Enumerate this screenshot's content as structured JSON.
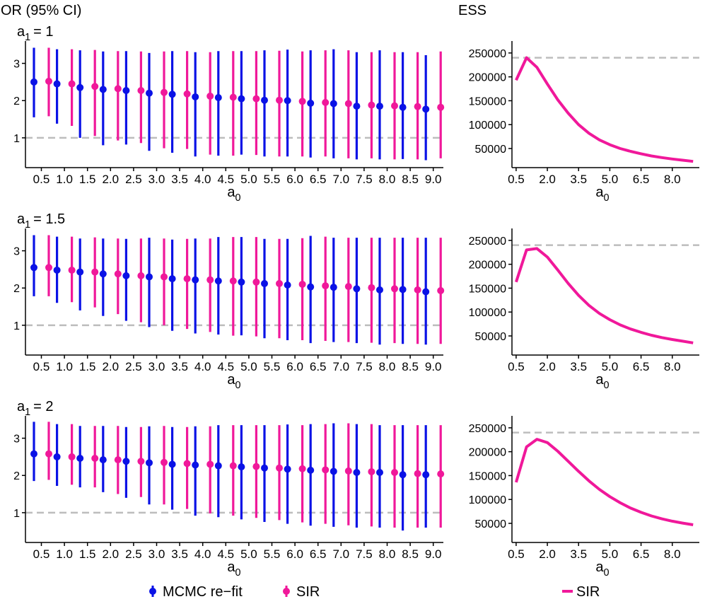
{
  "figure": {
    "left_title": "OR (95% CI)",
    "right_title": "ESS",
    "x_axis_label_base": "a",
    "x_axis_label_sub": "0",
    "panel_label_base": "a",
    "panel_label_sub": "1",
    "colors": {
      "mcmc": "#0a12e6",
      "sir": "#f0189a",
      "ref_line": "#bdbdbd"
    }
  },
  "legend": {
    "left_items": [
      {
        "label": "MCMC re−fit",
        "color": "#0a12e6"
      },
      {
        "label": "SIR",
        "color": "#f0189a"
      }
    ],
    "right_items": [
      {
        "label": "SIR",
        "color": "#f0189a"
      }
    ]
  },
  "chart_data": [
    {
      "type": "scatter",
      "panel_label_value": "= 1",
      "x_tick_labels": [
        "0.5",
        "1.0",
        "1.5",
        "2.0",
        "2.5",
        "3.0",
        "3.5",
        "4.0",
        "4.5",
        "5.0",
        "5.5",
        "6.0",
        "6.5",
        "7.0",
        "7.5",
        "8.0",
        "8.5",
        "9.0"
      ],
      "y_ticks": [
        "1",
        "2",
        "3"
      ],
      "ylim": [
        0.2,
        3.6
      ],
      "ref_line_y": 1,
      "series": [
        {
          "name": "MCMC re−fit",
          "y": [
            2.5,
            2.45,
            2.35,
            2.3,
            2.27,
            2.2,
            2.17,
            2.1,
            2.08,
            2.05,
            2.01,
            2.0,
            1.93,
            1.92,
            1.85,
            1.85,
            1.82,
            1.77
          ],
          "lower": [
            1.55,
            1.38,
            1.0,
            0.8,
            0.82,
            0.65,
            0.6,
            0.5,
            0.52,
            0.55,
            0.5,
            0.5,
            0.47,
            0.45,
            0.42,
            0.42,
            0.43,
            0.4
          ],
          "upper": [
            3.42,
            3.38,
            3.35,
            3.32,
            3.33,
            3.28,
            3.33,
            3.3,
            3.33,
            3.33,
            3.35,
            3.37,
            3.35,
            3.38,
            3.3,
            3.35,
            3.3,
            3.22
          ]
        },
        {
          "name": "SIR",
          "y": [
            2.52,
            2.45,
            2.38,
            2.32,
            2.27,
            2.22,
            2.18,
            2.12,
            2.09,
            2.05,
            2.01,
            1.98,
            1.95,
            1.92,
            1.88,
            1.86,
            1.84,
            1.82
          ],
          "lower": [
            1.58,
            1.32,
            1.05,
            0.93,
            0.86,
            0.72,
            0.7,
            0.55,
            0.52,
            0.54,
            0.5,
            0.5,
            0.5,
            0.45,
            0.45,
            0.42,
            0.42,
            0.45
          ],
          "upper": [
            3.42,
            3.38,
            3.36,
            3.33,
            3.32,
            3.32,
            3.33,
            3.3,
            3.33,
            3.33,
            3.34,
            3.32,
            3.35,
            3.35,
            3.3,
            3.3,
            3.3,
            3.32
          ]
        }
      ],
      "ess": {
        "type": "line",
        "name": "SIR",
        "x_tick_labels": [
          "0.5",
          "2.0",
          "3.5",
          "5.0",
          "6.5",
          "8.0"
        ],
        "x_tick_values": [
          0.5,
          2.0,
          3.5,
          5.0,
          6.5,
          8.0
        ],
        "xlim": [
          0.3,
          9.3
        ],
        "y_tick_labels": [
          "50000",
          "100000",
          "150000",
          "200000",
          "250000"
        ],
        "y_tick_values": [
          50000,
          100000,
          150000,
          200000,
          250000
        ],
        "ylim": [
          10000,
          275000
        ],
        "ref_line_y": 240000,
        "x": [
          0.5,
          1.0,
          1.5,
          2.0,
          2.5,
          3.0,
          3.5,
          4.0,
          4.5,
          5.0,
          5.5,
          6.0,
          6.5,
          7.0,
          7.5,
          8.0,
          8.5,
          9.0
        ],
        "y": [
          193000,
          240000,
          220000,
          185000,
          152000,
          124000,
          100000,
          82000,
          68000,
          58000,
          50000,
          44000,
          39000,
          34500,
          31000,
          28000,
          25500,
          23000
        ]
      }
    },
    {
      "type": "scatter",
      "panel_label_value": "= 1.5",
      "x_tick_labels": [
        "0.5",
        "1.0",
        "1.5",
        "2.0",
        "2.5",
        "3.0",
        "3.5",
        "4.0",
        "4.5",
        "5.0",
        "5.5",
        "6.0",
        "6.5",
        "7.0",
        "7.5",
        "8.0",
        "8.5",
        "9.0"
      ],
      "y_ticks": [
        "1",
        "2",
        "3"
      ],
      "ylim": [
        0.2,
        3.6
      ],
      "ref_line_y": 1,
      "series": [
        {
          "name": "MCMC re−fit",
          "y": [
            2.55,
            2.48,
            2.43,
            2.38,
            2.33,
            2.3,
            2.25,
            2.22,
            2.19,
            2.16,
            2.12,
            2.08,
            2.03,
            2.02,
            1.98,
            1.95,
            1.96,
            1.9
          ],
          "lower": [
            1.78,
            1.6,
            1.4,
            1.25,
            1.12,
            0.95,
            0.85,
            0.78,
            0.75,
            0.73,
            0.65,
            0.6,
            0.52,
            0.55,
            0.52,
            0.48,
            0.5,
            0.48
          ],
          "upper": [
            3.42,
            3.38,
            3.33,
            3.33,
            3.32,
            3.35,
            3.3,
            3.33,
            3.37,
            3.37,
            3.32,
            3.32,
            3.4,
            3.35,
            3.35,
            3.35,
            3.35,
            3.35
          ]
        },
        {
          "name": "SIR",
          "y": [
            2.55,
            2.48,
            2.43,
            2.38,
            2.33,
            2.3,
            2.25,
            2.22,
            2.19,
            2.16,
            2.12,
            2.1,
            2.06,
            2.04,
            2.01,
            1.98,
            1.95,
            1.93
          ],
          "lower": [
            1.78,
            1.62,
            1.48,
            1.3,
            1.08,
            1.0,
            0.9,
            0.82,
            0.72,
            0.7,
            0.65,
            0.6,
            0.58,
            0.55,
            0.53,
            0.52,
            0.5,
            0.5
          ],
          "upper": [
            3.42,
            3.38,
            3.36,
            3.33,
            3.33,
            3.33,
            3.32,
            3.33,
            3.37,
            3.37,
            3.32,
            3.34,
            3.38,
            3.35,
            3.35,
            3.35,
            3.35,
            3.35
          ]
        }
      ],
      "ess": {
        "type": "line",
        "name": "SIR",
        "x_tick_labels": [
          "0.5",
          "2.0",
          "3.5",
          "5.0",
          "6.5",
          "8.0"
        ],
        "x_tick_values": [
          0.5,
          2.0,
          3.5,
          5.0,
          6.5,
          8.0
        ],
        "xlim": [
          0.3,
          9.3
        ],
        "y_tick_labels": [
          "50000",
          "100000",
          "150000",
          "200000",
          "250000"
        ],
        "y_tick_values": [
          50000,
          100000,
          150000,
          200000,
          250000
        ],
        "ylim": [
          10000,
          275000
        ],
        "ref_line_y": 240000,
        "x": [
          0.5,
          1.0,
          1.5,
          2.0,
          2.5,
          3.0,
          3.5,
          4.0,
          4.5,
          5.0,
          5.5,
          6.0,
          6.5,
          7.0,
          7.5,
          8.0,
          8.5,
          9.0
        ],
        "y": [
          163000,
          230000,
          233000,
          215000,
          188000,
          160000,
          135000,
          114000,
          97000,
          84000,
          73000,
          64500,
          57500,
          51500,
          46500,
          42500,
          39000,
          35500
        ]
      }
    },
    {
      "type": "scatter",
      "panel_label_value": "= 2",
      "x_tick_labels": [
        "0.5",
        "1.0",
        "1.5",
        "2.0",
        "2.5",
        "3.0",
        "3.5",
        "4.0",
        "4.5",
        "5.0",
        "5.5",
        "6.0",
        "6.5",
        "7.0",
        "7.5",
        "8.0",
        "8.5",
        "9.0"
      ],
      "y_ticks": [
        "1",
        "2",
        "3"
      ],
      "ylim": [
        0.2,
        3.6
      ],
      "ref_line_y": 1,
      "series": [
        {
          "name": "MCMC re−fit",
          "y": [
            2.58,
            2.5,
            2.46,
            2.42,
            2.38,
            2.34,
            2.3,
            2.28,
            2.26,
            2.23,
            2.2,
            2.17,
            2.14,
            2.11,
            2.08,
            2.08,
            2.02,
            2.02
          ],
          "lower": [
            1.85,
            1.72,
            1.68,
            1.55,
            1.4,
            1.22,
            1.08,
            0.92,
            0.88,
            0.82,
            0.75,
            0.7,
            0.65,
            0.62,
            0.6,
            0.6,
            0.52,
            0.6
          ],
          "upper": [
            3.44,
            3.38,
            3.33,
            3.33,
            3.3,
            3.32,
            3.3,
            3.32,
            3.35,
            3.35,
            3.35,
            3.37,
            3.38,
            3.4,
            3.38,
            3.35,
            3.35,
            3.35
          ]
        },
        {
          "name": "SIR",
          "y": [
            2.58,
            2.5,
            2.46,
            2.42,
            2.38,
            2.35,
            2.32,
            2.3,
            2.26,
            2.24,
            2.2,
            2.18,
            2.15,
            2.12,
            2.1,
            2.08,
            2.05,
            2.04
          ],
          "lower": [
            1.88,
            1.75,
            1.68,
            1.5,
            1.42,
            1.22,
            1.1,
            0.98,
            0.92,
            0.86,
            0.8,
            0.74,
            0.7,
            0.66,
            0.63,
            0.6,
            0.6,
            0.6
          ],
          "upper": [
            3.44,
            3.38,
            3.33,
            3.33,
            3.3,
            3.33,
            3.3,
            3.32,
            3.35,
            3.35,
            3.35,
            3.35,
            3.38,
            3.4,
            3.38,
            3.35,
            3.35,
            3.35
          ]
        }
      ],
      "ess": {
        "type": "line",
        "name": "SIR",
        "x_tick_labels": [
          "0.5",
          "2.0",
          "3.5",
          "5.0",
          "6.5",
          "8.0"
        ],
        "x_tick_values": [
          0.5,
          2.0,
          3.5,
          5.0,
          6.5,
          8.0
        ],
        "xlim": [
          0.3,
          9.3
        ],
        "y_tick_labels": [
          "50000",
          "100000",
          "150000",
          "200000",
          "250000"
        ],
        "y_tick_values": [
          50000,
          100000,
          150000,
          200000,
          250000
        ],
        "ylim": [
          10000,
          275000
        ],
        "ref_line_y": 240000,
        "x": [
          0.5,
          1.0,
          1.5,
          2.0,
          2.5,
          3.0,
          3.5,
          4.0,
          4.5,
          5.0,
          5.5,
          6.0,
          6.5,
          7.0,
          7.5,
          8.0,
          8.5,
          9.0
        ],
        "y": [
          136000,
          210000,
          226000,
          219000,
          201000,
          180000,
          159000,
          139000,
          121000,
          106000,
          93000,
          82000,
          73000,
          65500,
          59500,
          54500,
          50500,
          47000
        ]
      }
    }
  ]
}
